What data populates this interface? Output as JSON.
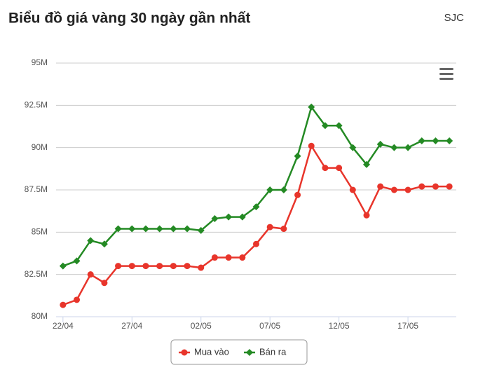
{
  "header": {
    "title": "Biểu đồ giá vàng 30 ngày gần nhất",
    "source": "SJC"
  },
  "chart_data": {
    "type": "line",
    "categories": [
      "22/04",
      null,
      null,
      null,
      null,
      "27/04",
      null,
      null,
      null,
      null,
      "02/05",
      null,
      null,
      null,
      null,
      "07/05",
      null,
      null,
      null,
      null,
      "12/05",
      null,
      null,
      null,
      null,
      "17/05",
      null,
      null,
      null
    ],
    "series": [
      {
        "name": "Mua vào",
        "color": "#e8352b",
        "marker": "circle",
        "values": [
          80.7,
          81.0,
          82.5,
          82.0,
          83.0,
          83.0,
          83.0,
          83.0,
          83.0,
          83.0,
          82.9,
          83.5,
          83.5,
          83.5,
          84.3,
          85.3,
          85.2,
          87.2,
          90.1,
          88.8,
          88.8,
          87.5,
          86.0,
          87.7,
          87.5,
          87.5,
          87.7,
          87.7,
          87.7
        ]
      },
      {
        "name": "Bán ra",
        "color": "#248a24",
        "marker": "diamond",
        "values": [
          83.0,
          83.3,
          84.5,
          84.3,
          85.2,
          85.2,
          85.2,
          85.2,
          85.2,
          85.2,
          85.1,
          85.8,
          85.9,
          85.9,
          86.5,
          87.5,
          87.5,
          89.5,
          92.4,
          91.3,
          91.3,
          90.0,
          89.0,
          90.2,
          90.0,
          90.0,
          90.4,
          90.4,
          90.4
        ]
      }
    ],
    "ylim": [
      80,
      95
    ],
    "yticks": [
      {
        "value": 80,
        "label": "80M"
      },
      {
        "value": 82.5,
        "label": "82.5M"
      },
      {
        "value": 85,
        "label": "85M"
      },
      {
        "value": 87.5,
        "label": "87.5M"
      },
      {
        "value": 90,
        "label": "90M"
      },
      {
        "value": 92.5,
        "label": "92.5M"
      },
      {
        "value": 95,
        "label": "95M"
      }
    ],
    "grid": true,
    "legend": "bottom"
  }
}
